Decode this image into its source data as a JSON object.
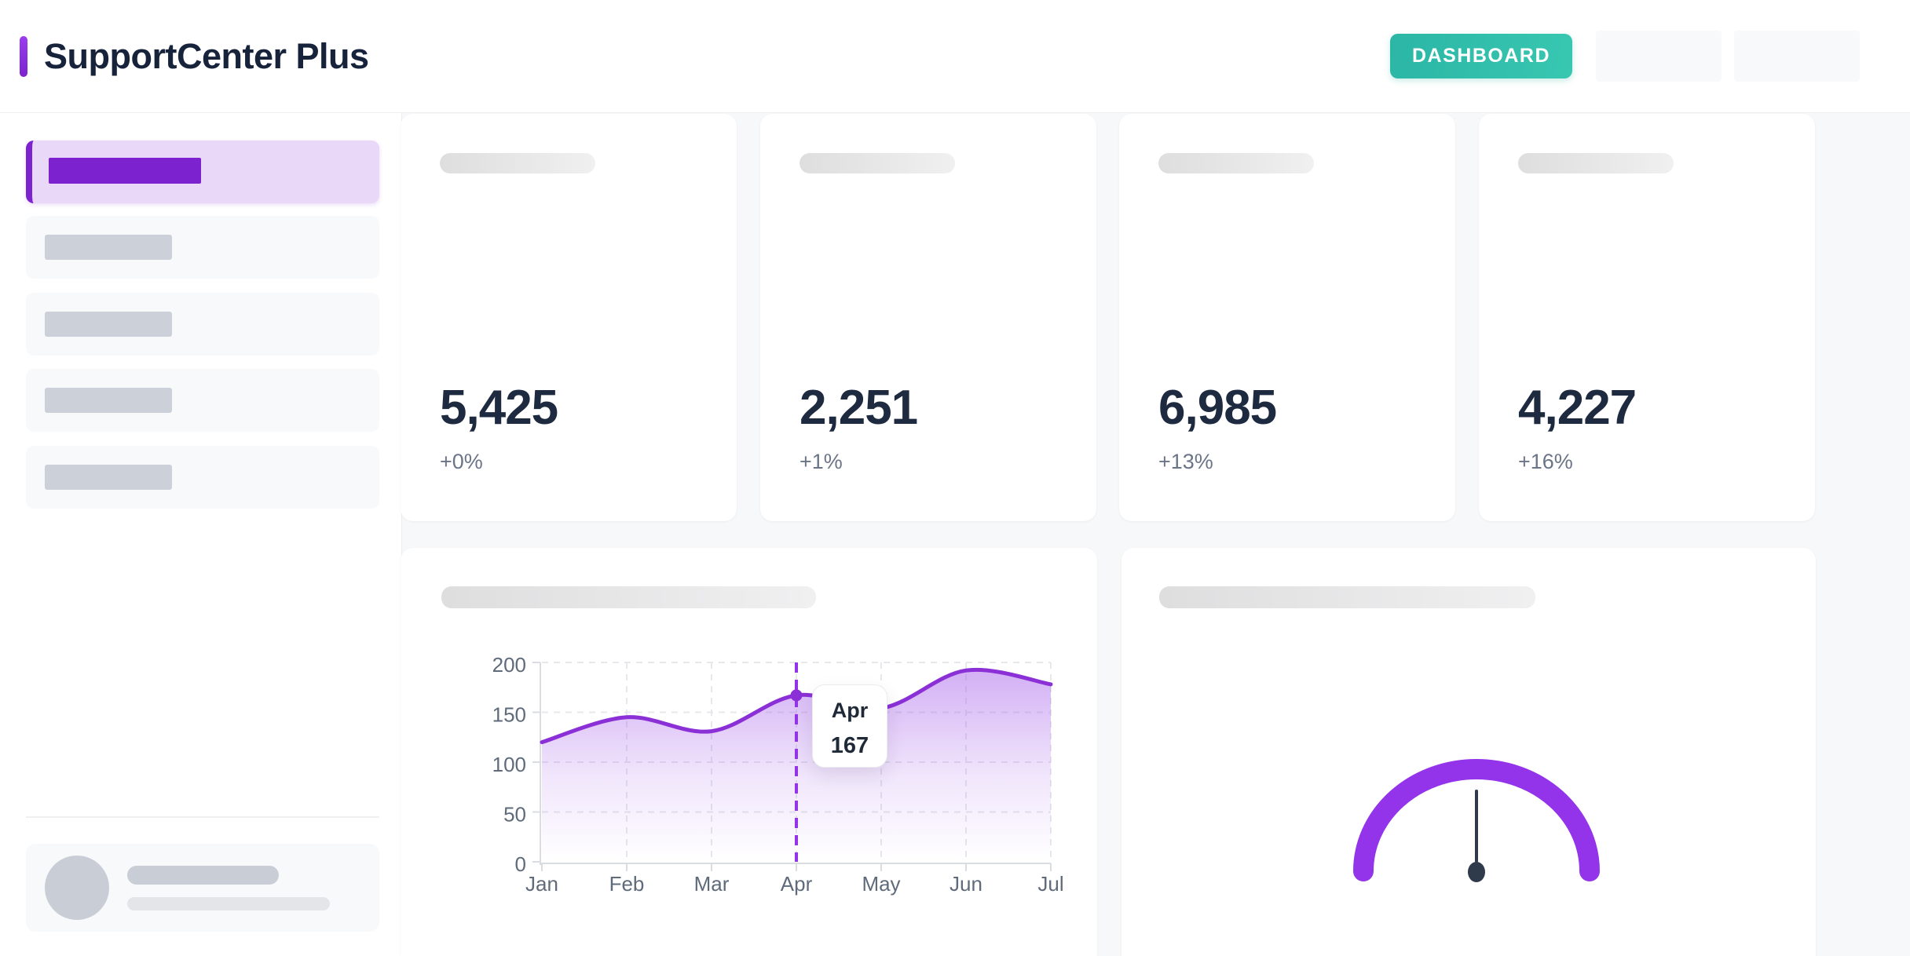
{
  "header": {
    "title": "SupportCenter Plus",
    "nav_button": "DASHBOARD"
  },
  "stats": [
    {
      "value": "5,425",
      "change": "+0%"
    },
    {
      "value": "2,251",
      "change": "+1%"
    },
    {
      "value": "6,985",
      "change": "+13%"
    },
    {
      "value": "4,227",
      "change": "+16%"
    }
  ],
  "chart_data": [
    {
      "type": "area",
      "categories": [
        "Jan",
        "Feb",
        "Mar",
        "Apr",
        "May",
        "Jun",
        "Jul"
      ],
      "values": [
        120,
        145,
        131,
        167,
        154,
        192,
        178
      ],
      "ylim": [
        0,
        200
      ],
      "yticks": [
        0,
        50,
        100,
        150,
        200
      ],
      "grid": true,
      "highlight": {
        "index": 3,
        "label": "Apr",
        "value": 167
      },
      "line_color": "#8b2fd6",
      "cursor_color": "#9333ea",
      "area_color": "#a660ea"
    },
    {
      "type": "gauge",
      "needle_position": 0.5,
      "arc_color": "#9333ea",
      "needle_color": "#2f3a4a"
    }
  ],
  "colors": {
    "page_bg": "#f7f8fa",
    "accent_purple": "#7c22ce",
    "active_item_bg": "#ead8f8",
    "teal_button": "#2bb6a5",
    "title_text": "#17233b",
    "stat_text": "#1e2a40",
    "muted_text": "#6b7587",
    "axis_text": "#5f6b7a",
    "grid_line": "#e6e8ec",
    "axis_line": "#d9dce1",
    "skeleton_gray": "#ccd1d9",
    "avatar_gray": "#c9cdd6"
  }
}
